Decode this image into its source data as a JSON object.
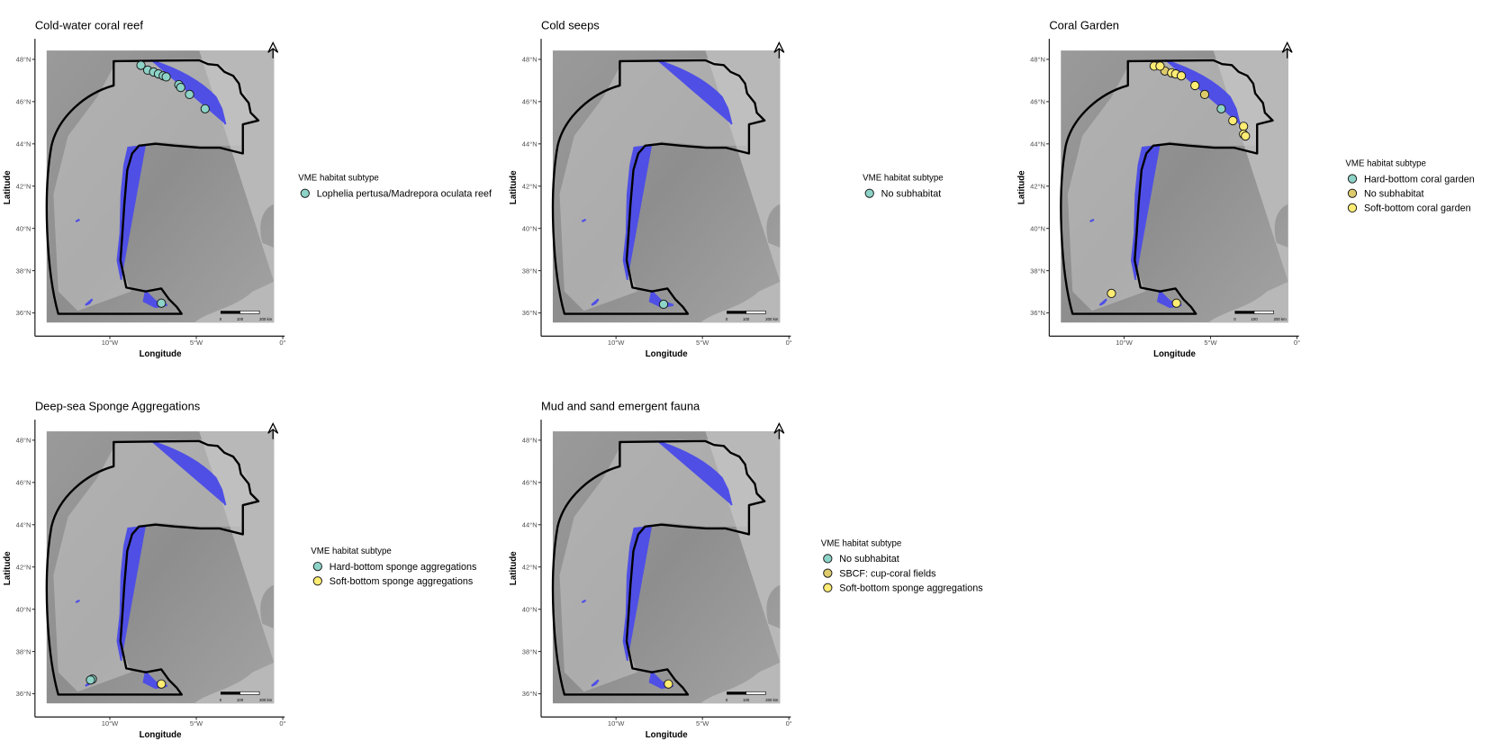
{
  "chart_data": [
    {
      "type": "scatter",
      "title": "Cold-water coral reef",
      "x_label": "Longitude",
      "y_label": "Latitude",
      "xlim": [
        -14.33,
        0.11
      ],
      "ylim": [
        34.9,
        48.97
      ],
      "xticks": [
        {
          "value": -10,
          "label": "10°W"
        },
        {
          "value": -5,
          "label": "5°W"
        },
        {
          "value": 0,
          "label": "0°"
        }
      ],
      "yticks": [
        {
          "value": 36,
          "label": "36°N"
        },
        {
          "value": 38,
          "label": "38°N"
        },
        {
          "value": 40,
          "label": "40°N"
        },
        {
          "value": 42,
          "label": "42°N"
        },
        {
          "value": 44,
          "label": "44°N"
        },
        {
          "value": 46,
          "label": "46°N"
        },
        {
          "value": 48,
          "label": "48°N"
        }
      ],
      "scalebar_labels": [
        "0",
        "100",
        "200 km"
      ],
      "legend_title": "VME habitat subtype",
      "series": [
        {
          "name": "Lophelia pertusa/Madrepora oculata reef",
          "color": "#8dd3c7",
          "x": [
            -8.2,
            -7.81,
            -7.47,
            -7.19,
            -6.91,
            -6.74,
            -6.01,
            -5.9,
            -5.39,
            -4.49,
            -7.02
          ],
          "y": [
            47.72,
            47.49,
            47.4,
            47.31,
            47.22,
            47.17,
            46.8,
            46.67,
            46.34,
            45.66,
            36.46
          ]
        }
      ]
    },
    {
      "type": "scatter",
      "title": "Cold seeps",
      "x_label": "Longitude",
      "y_label": "Latitude",
      "xlim": [
        -14.33,
        0.11
      ],
      "ylim": [
        34.9,
        48.97
      ],
      "xticks": [
        {
          "value": -10,
          "label": "10°W"
        },
        {
          "value": -5,
          "label": "5°W"
        },
        {
          "value": 0,
          "label": "0°"
        }
      ],
      "yticks": [
        {
          "value": 36,
          "label": "36°N"
        },
        {
          "value": 38,
          "label": "38°N"
        },
        {
          "value": 40,
          "label": "40°N"
        },
        {
          "value": 42,
          "label": "42°N"
        },
        {
          "value": 44,
          "label": "44°N"
        },
        {
          "value": 46,
          "label": "46°N"
        },
        {
          "value": 48,
          "label": "48°N"
        }
      ],
      "scalebar_labels": [
        "0",
        "100",
        "200 km"
      ],
      "legend_title": "VME habitat subtype",
      "series": [
        {
          "name": "No subhabitat",
          "color": "#8dd3c7",
          "x": [
            -7.25
          ],
          "y": [
            36.41
          ]
        }
      ]
    },
    {
      "type": "scatter",
      "title": "Coral Garden",
      "x_label": "Longitude",
      "y_label": "Latitude",
      "xlim": [
        -14.33,
        0.11
      ],
      "ylim": [
        34.9,
        48.97
      ],
      "xticks": [
        {
          "value": -10,
          "label": "10°W"
        },
        {
          "value": -5,
          "label": "5°W"
        },
        {
          "value": 0,
          "label": "0°"
        }
      ],
      "yticks": [
        {
          "value": 36,
          "label": "36°N"
        },
        {
          "value": 38,
          "label": "38°N"
        },
        {
          "value": 40,
          "label": "40°N"
        },
        {
          "value": 42,
          "label": "42°N"
        },
        {
          "value": 44,
          "label": "44°N"
        },
        {
          "value": 46,
          "label": "46°N"
        },
        {
          "value": 48,
          "label": "48°N"
        }
      ],
      "scalebar_labels": [
        "0",
        "100",
        "200 km"
      ],
      "legend_title": "VME habitat subtype",
      "series": [
        {
          "name": "Hard-bottom coral garden",
          "color": "#8dd3c7",
          "x": [
            -4.38
          ],
          "y": [
            45.66
          ]
        },
        {
          "name": "No subhabitat",
          "color": "#ddcb6b",
          "x": [
            -7.64,
            -5.34
          ],
          "y": [
            47.45,
            46.34
          ]
        },
        {
          "name": "Soft-bottom coral garden",
          "color": "#ffec73",
          "x": [
            -8.26,
            -7.92,
            -7.25,
            -7.02,
            -6.69,
            -5.9,
            -3.71,
            -3.09,
            -3.09,
            -2.98,
            -10.73,
            -6.97
          ],
          "y": [
            47.68,
            47.68,
            47.36,
            47.31,
            47.22,
            46.76,
            45.1,
            44.83,
            44.46,
            44.37,
            36.92,
            36.46
          ]
        }
      ]
    },
    {
      "type": "scatter",
      "title": "Deep-sea Sponge Aggregations",
      "x_label": "Longitude",
      "y_label": "Latitude",
      "xlim": [
        -14.33,
        0.11
      ],
      "ylim": [
        34.9,
        48.97
      ],
      "xticks": [
        {
          "value": -10,
          "label": "10°W"
        },
        {
          "value": -5,
          "label": "5°W"
        },
        {
          "value": 0,
          "label": "0°"
        }
      ],
      "yticks": [
        {
          "value": 36,
          "label": "36°N"
        },
        {
          "value": 38,
          "label": "38°N"
        },
        {
          "value": 40,
          "label": "40°N"
        },
        {
          "value": 42,
          "label": "42°N"
        },
        {
          "value": 44,
          "label": "44°N"
        },
        {
          "value": 46,
          "label": "46°N"
        },
        {
          "value": 48,
          "label": "48°N"
        }
      ],
      "scalebar_labels": [
        "0",
        "100",
        "200 km"
      ],
      "legend_title": "VME habitat subtype",
      "series": [
        {
          "name": "Hard-bottom sponge aggregations",
          "color": "#8dd3c7",
          "x": [
            -11.01,
            -11.12
          ],
          "y": [
            36.69,
            36.65
          ]
        },
        {
          "name": "Soft-bottom sponge aggregations",
          "color": "#ffec73",
          "x": [
            -7.02
          ],
          "y": [
            36.46
          ]
        }
      ]
    },
    {
      "type": "scatter",
      "title": "Mud and sand emergent fauna",
      "x_label": "Longitude",
      "y_label": "Latitude",
      "xlim": [
        -14.33,
        0.11
      ],
      "ylim": [
        34.9,
        48.97
      ],
      "xticks": [
        {
          "value": -10,
          "label": "10°W"
        },
        {
          "value": -5,
          "label": "5°W"
        },
        {
          "value": 0,
          "label": "0°"
        }
      ],
      "yticks": [
        {
          "value": 36,
          "label": "36°N"
        },
        {
          "value": 38,
          "label": "38°N"
        },
        {
          "value": 40,
          "label": "40°N"
        },
        {
          "value": 42,
          "label": "42°N"
        },
        {
          "value": 44,
          "label": "44°N"
        },
        {
          "value": 46,
          "label": "46°N"
        },
        {
          "value": 48,
          "label": "48°N"
        }
      ],
      "scalebar_labels": [
        "0",
        "100",
        "200 km"
      ],
      "legend_title": "VME habitat subtype",
      "series": [
        {
          "name": "No subhabitat",
          "color": "#8dd3c7",
          "x": [],
          "y": []
        },
        {
          "name": "SBCF: cup-coral fields",
          "color": "#ddcb6b",
          "x": [],
          "y": []
        },
        {
          "name": "Soft-bottom sponge aggregations",
          "color": "#ffec73",
          "x": [
            -6.97
          ],
          "y": [
            36.46
          ]
        }
      ]
    }
  ]
}
